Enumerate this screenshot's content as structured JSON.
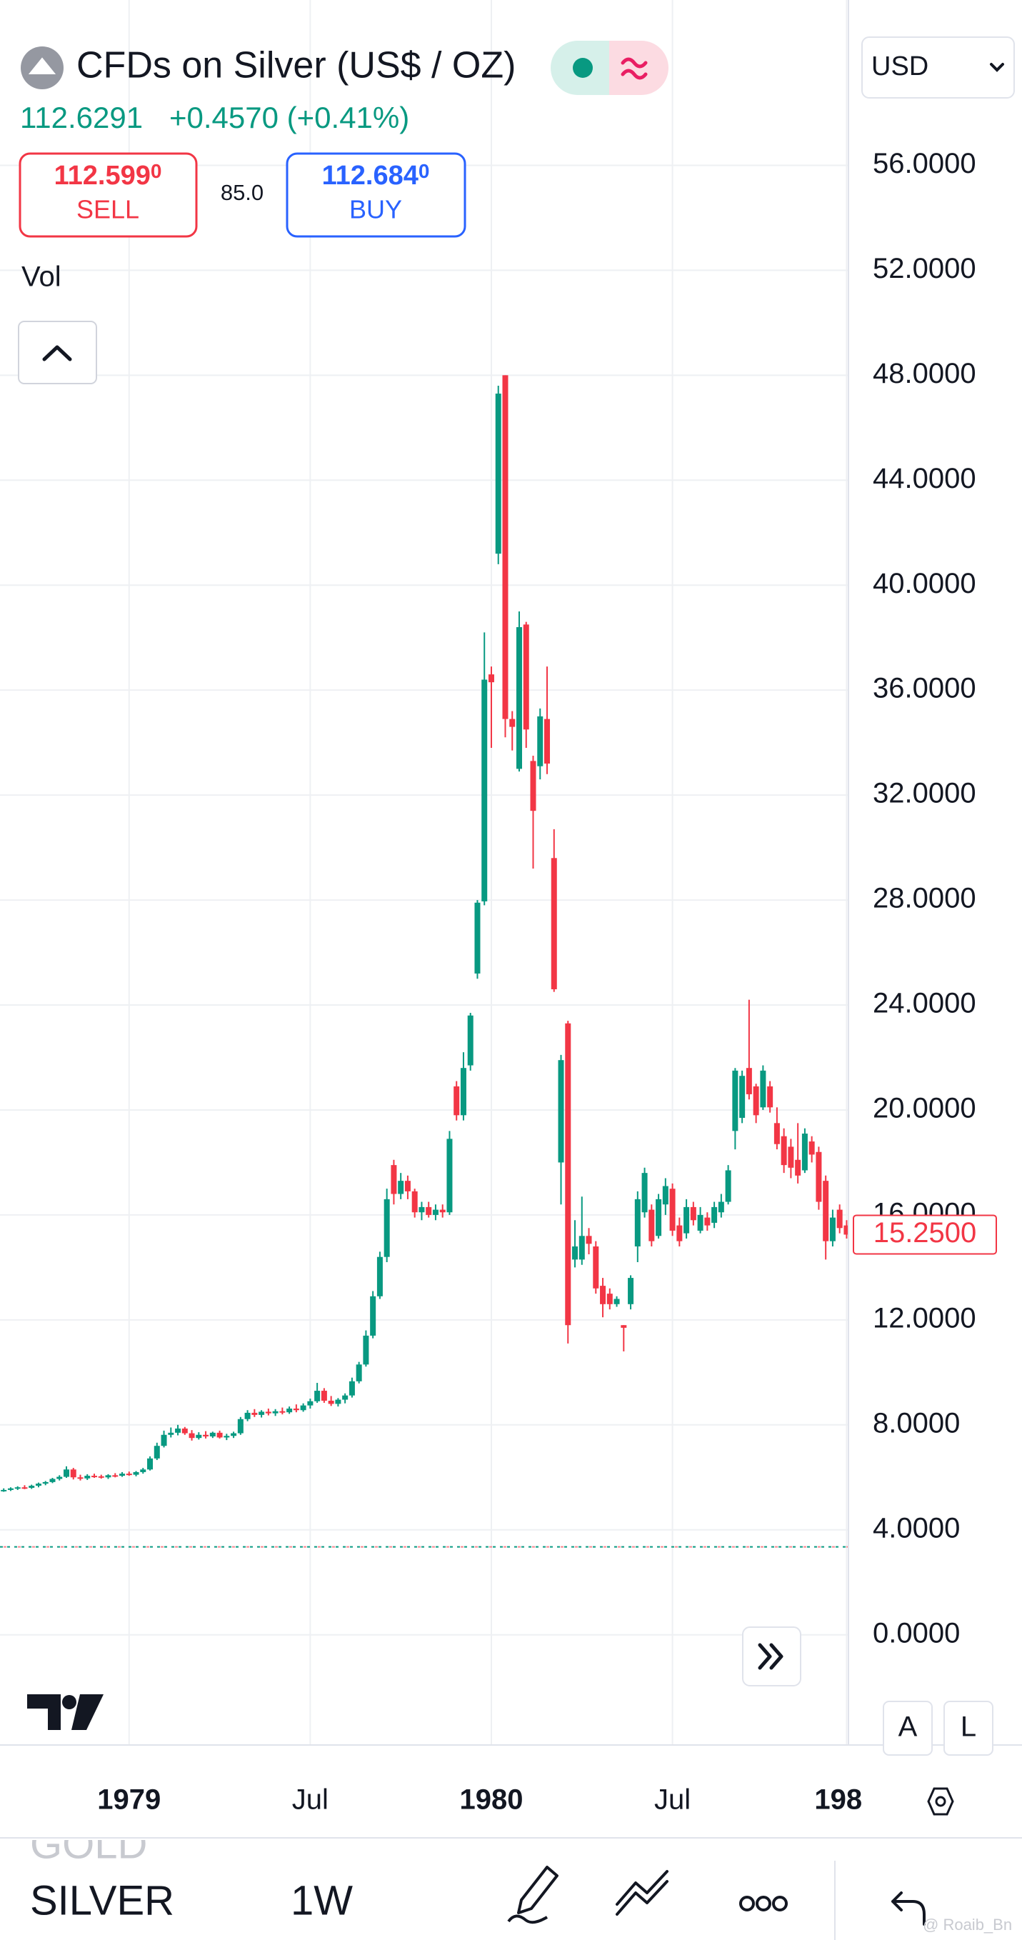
{
  "header": {
    "title": "CFDs on Silver (US$ / OZ)",
    "price": "112.6291",
    "change": "+0.4570 (+0.41%)"
  },
  "trade": {
    "sell_price": "112.599",
    "sell_price_small": "0",
    "sell_label": "SELL",
    "spread": "85.0",
    "buy_price": "112.684",
    "buy_price_small": "0",
    "buy_label": "BUY"
  },
  "indicator": "Vol",
  "currency": "USD",
  "scale_buttons": [
    "A",
    "L"
  ],
  "toolbar": {
    "symbol_prev": "GOLD",
    "symbol": "SILVER",
    "interval": "1W"
  },
  "watermark": "@ Roaib_Bn",
  "chart_data": {
    "type": "candlestick",
    "up_color": "#089981",
    "down_color": "#f23645",
    "grid": true,
    "categories": [
      null,
      null,
      null,
      null,
      null,
      null,
      null,
      null,
      null,
      null,
      null,
      null,
      null,
      null,
      null,
      null,
      null,
      null,
      "1979",
      null,
      null,
      null,
      null,
      null,
      null,
      null,
      null,
      null,
      null,
      null,
      null,
      null,
      null,
      null,
      null,
      null,
      null,
      null,
      null,
      null,
      null,
      null,
      null,
      null,
      "Jul",
      null,
      null,
      null,
      null,
      null,
      null,
      null,
      null,
      null,
      null,
      null,
      null,
      null,
      null,
      null,
      null,
      null,
      null,
      null,
      null,
      null,
      null,
      null,
      null,
      null,
      "1980",
      null,
      null,
      null,
      null,
      null,
      null,
      null,
      null,
      null,
      null,
      null,
      null,
      null,
      null,
      null,
      null,
      null,
      null,
      null,
      null,
      null,
      null,
      null,
      null,
      null,
      "Jul",
      null,
      null,
      null,
      null,
      null,
      null,
      null,
      null,
      null,
      null,
      null,
      null,
      null,
      null,
      null,
      null,
      null,
      null,
      null,
      null,
      null,
      null,
      null,
      null,
      "198"
    ],
    "open": [
      5.5,
      5.52,
      5.58,
      5.62,
      5.6,
      5.68,
      5.76,
      5.82,
      5.94,
      6.02,
      6.3,
      6.0,
      5.96,
      6.06,
      6.04,
      6.0,
      6.08,
      6.06,
      6.14,
      6.1,
      6.2,
      6.3,
      6.72,
      7.2,
      7.62,
      7.7,
      7.86,
      7.68,
      7.5,
      7.62,
      7.56,
      7.7,
      7.52,
      7.58,
      7.68,
      8.22,
      8.46,
      8.38,
      8.5,
      8.44,
      8.52,
      8.48,
      8.62,
      8.56,
      8.74,
      8.9,
      9.3,
      8.92,
      8.8,
      8.96,
      9.12,
      9.66,
      10.3,
      11.4,
      12.9,
      14.4,
      17.9,
      16.8,
      17.3,
      16.9,
      16.1,
      16.3,
      16.0,
      16.2,
      16.1,
      20.9,
      19.8,
      21.7,
      25.2,
      27.95,
      36.6,
      41.2,
      48.0,
      34.9,
      33.0,
      38.5,
      33.3,
      33.1,
      34.9,
      29.6,
      18.0,
      23.3,
      14.3,
      14.3,
      15.2,
      14.8,
      13.3,
      13.0,
      12.6,
      11.8,
      12.6,
      14.8,
      16.1,
      16.2,
      15.2,
      16.4,
      17.0,
      15.6,
      15.3,
      16.3,
      15.4,
      15.9,
      15.7,
      16.1,
      16.5,
      19.2,
      19.7,
      21.6,
      20.9,
      20.1,
      20.9,
      19.5,
      19.0,
      18.6,
      18.1,
      17.7,
      18.8,
      18.4,
      17.3,
      15.0,
      16.2,
      15.6
    ],
    "high": [
      5.58,
      5.62,
      5.66,
      5.7,
      5.72,
      5.8,
      5.86,
      5.98,
      6.08,
      6.42,
      6.36,
      6.1,
      6.12,
      6.14,
      6.1,
      6.12,
      6.16,
      6.2,
      6.22,
      6.24,
      6.36,
      6.8,
      7.32,
      7.78,
      7.9,
      8.0,
      7.92,
      7.8,
      7.72,
      7.76,
      7.74,
      7.78,
      7.66,
      7.74,
      8.3,
      8.56,
      8.6,
      8.56,
      8.62,
      8.6,
      8.66,
      8.7,
      8.78,
      8.82,
      9.0,
      9.6,
      9.4,
      9.1,
      9.02,
      9.2,
      9.8,
      10.4,
      11.6,
      13.1,
      14.6,
      17.0,
      18.1,
      17.6,
      17.5,
      17.0,
      16.5,
      16.5,
      16.4,
      16.4,
      19.2,
      21.1,
      22.2,
      23.7,
      28.0,
      38.2,
      36.9,
      47.6,
      48.0,
      35.2,
      39.0,
      38.6,
      33.5,
      35.3,
      36.9,
      30.7,
      22.1,
      23.4,
      15.8,
      16.7,
      15.5,
      15.0,
      13.6,
      13.2,
      12.9,
      11.8,
      13.7,
      16.9,
      17.8,
      16.4,
      16.8,
      17.4,
      17.2,
      15.9,
      16.6,
      16.5,
      16.3,
      16.1,
      16.5,
      16.8,
      17.9,
      21.6,
      21.5,
      24.2,
      21.0,
      21.7,
      21.1,
      20.1,
      19.3,
      18.9,
      19.5,
      19.3,
      19.0,
      18.6,
      17.5,
      16.2,
      16.4,
      15.8
    ],
    "low": [
      5.45,
      5.48,
      5.52,
      5.55,
      5.56,
      5.62,
      5.7,
      5.78,
      5.88,
      5.98,
      5.92,
      5.88,
      5.9,
      5.98,
      5.95,
      5.94,
      6.0,
      6.02,
      6.06,
      6.04,
      6.14,
      6.26,
      6.66,
      7.14,
      7.52,
      7.6,
      7.62,
      7.4,
      7.44,
      7.48,
      7.5,
      7.48,
      7.42,
      7.5,
      7.62,
      8.14,
      8.3,
      8.28,
      8.36,
      8.34,
      8.4,
      8.42,
      8.48,
      8.5,
      8.62,
      8.84,
      8.84,
      8.72,
      8.7,
      8.82,
      9.04,
      9.58,
      10.22,
      11.3,
      12.8,
      14.2,
      16.4,
      16.6,
      16.6,
      15.9,
      15.8,
      15.9,
      15.8,
      15.9,
      16.0,
      19.6,
      19.6,
      21.5,
      25.0,
      27.8,
      33.8,
      40.8,
      34.2,
      33.7,
      32.9,
      33.8,
      29.2,
      32.6,
      32.8,
      24.5,
      16.4,
      11.1,
      14.0,
      14.1,
      14.5,
      13.0,
      12.1,
      12.4,
      12.5,
      10.8,
      12.4,
      14.2,
      15.9,
      14.8,
      15.1,
      16.0,
      15.2,
      14.8,
      15.1,
      15.6,
      15.3,
      15.4,
      15.5,
      15.9,
      16.4,
      18.5,
      19.5,
      20.4,
      19.5,
      20.0,
      19.9,
      18.5,
      17.6,
      17.4,
      17.2,
      17.6,
      18.0,
      16.2,
      14.3,
      14.8,
      15.3,
      15.1
    ],
    "close": [
      5.52,
      5.58,
      5.62,
      5.6,
      5.68,
      5.76,
      5.82,
      5.94,
      6.02,
      6.3,
      6.0,
      5.96,
      6.06,
      6.04,
      6.0,
      6.08,
      6.06,
      6.14,
      6.1,
      6.2,
      6.3,
      6.72,
      7.2,
      7.62,
      7.7,
      7.86,
      7.68,
      7.5,
      7.62,
      7.56,
      7.7,
      7.52,
      7.58,
      7.68,
      8.22,
      8.46,
      8.38,
      8.5,
      8.44,
      8.52,
      8.48,
      8.62,
      8.56,
      8.74,
      8.9,
      9.3,
      8.92,
      8.8,
      8.96,
      9.12,
      9.66,
      10.3,
      11.4,
      12.9,
      14.4,
      16.6,
      16.8,
      17.3,
      16.9,
      16.1,
      16.3,
      16.0,
      16.2,
      16.1,
      18.9,
      19.8,
      21.6,
      23.6,
      27.9,
      36.4,
      36.3,
      47.3,
      34.9,
      34.6,
      38.4,
      34.5,
      31.4,
      35.0,
      33.2,
      24.6,
      21.9,
      11.8,
      14.8,
      15.2,
      14.9,
      13.2,
      12.6,
      12.6,
      12.8,
      11.7,
      13.6,
      16.6,
      17.6,
      15.0,
      16.6,
      17.1,
      15.4,
      15.0,
      16.3,
      15.8,
      16.0,
      15.6,
      16.3,
      16.5,
      17.7,
      21.5,
      21.3,
      20.6,
      19.8,
      21.5,
      20.1,
      18.7,
      17.9,
      17.8,
      17.5,
      19.1,
      18.3,
      16.5,
      15.0,
      15.9,
      15.5,
      15.25
    ],
    "ylim": [
      -4.2,
      62.3
    ],
    "yticks": [
      {
        "value": 0,
        "label": "0.0000"
      },
      {
        "value": 4,
        "label": "4.0000"
      },
      {
        "value": 8,
        "label": "8.0000"
      },
      {
        "value": 12,
        "label": "12.0000"
      },
      {
        "value": 16,
        "label": "16.0000"
      },
      {
        "value": 20,
        "label": "20.0000"
      },
      {
        "value": 24,
        "label": "24.0000"
      },
      {
        "value": 28,
        "label": "28.0000"
      },
      {
        "value": 32,
        "label": "32.0000"
      },
      {
        "value": 36,
        "label": "36.0000"
      },
      {
        "value": 40,
        "label": "40.0000"
      },
      {
        "value": 44,
        "label": "44.0000"
      },
      {
        "value": 48,
        "label": "48.0000"
      },
      {
        "value": 52,
        "label": "52.0000"
      },
      {
        "value": 56,
        "label": "56.0000"
      }
    ],
    "last_price": {
      "value": 15.25,
      "label": "15.2500"
    },
    "price_line": 3.35
  }
}
